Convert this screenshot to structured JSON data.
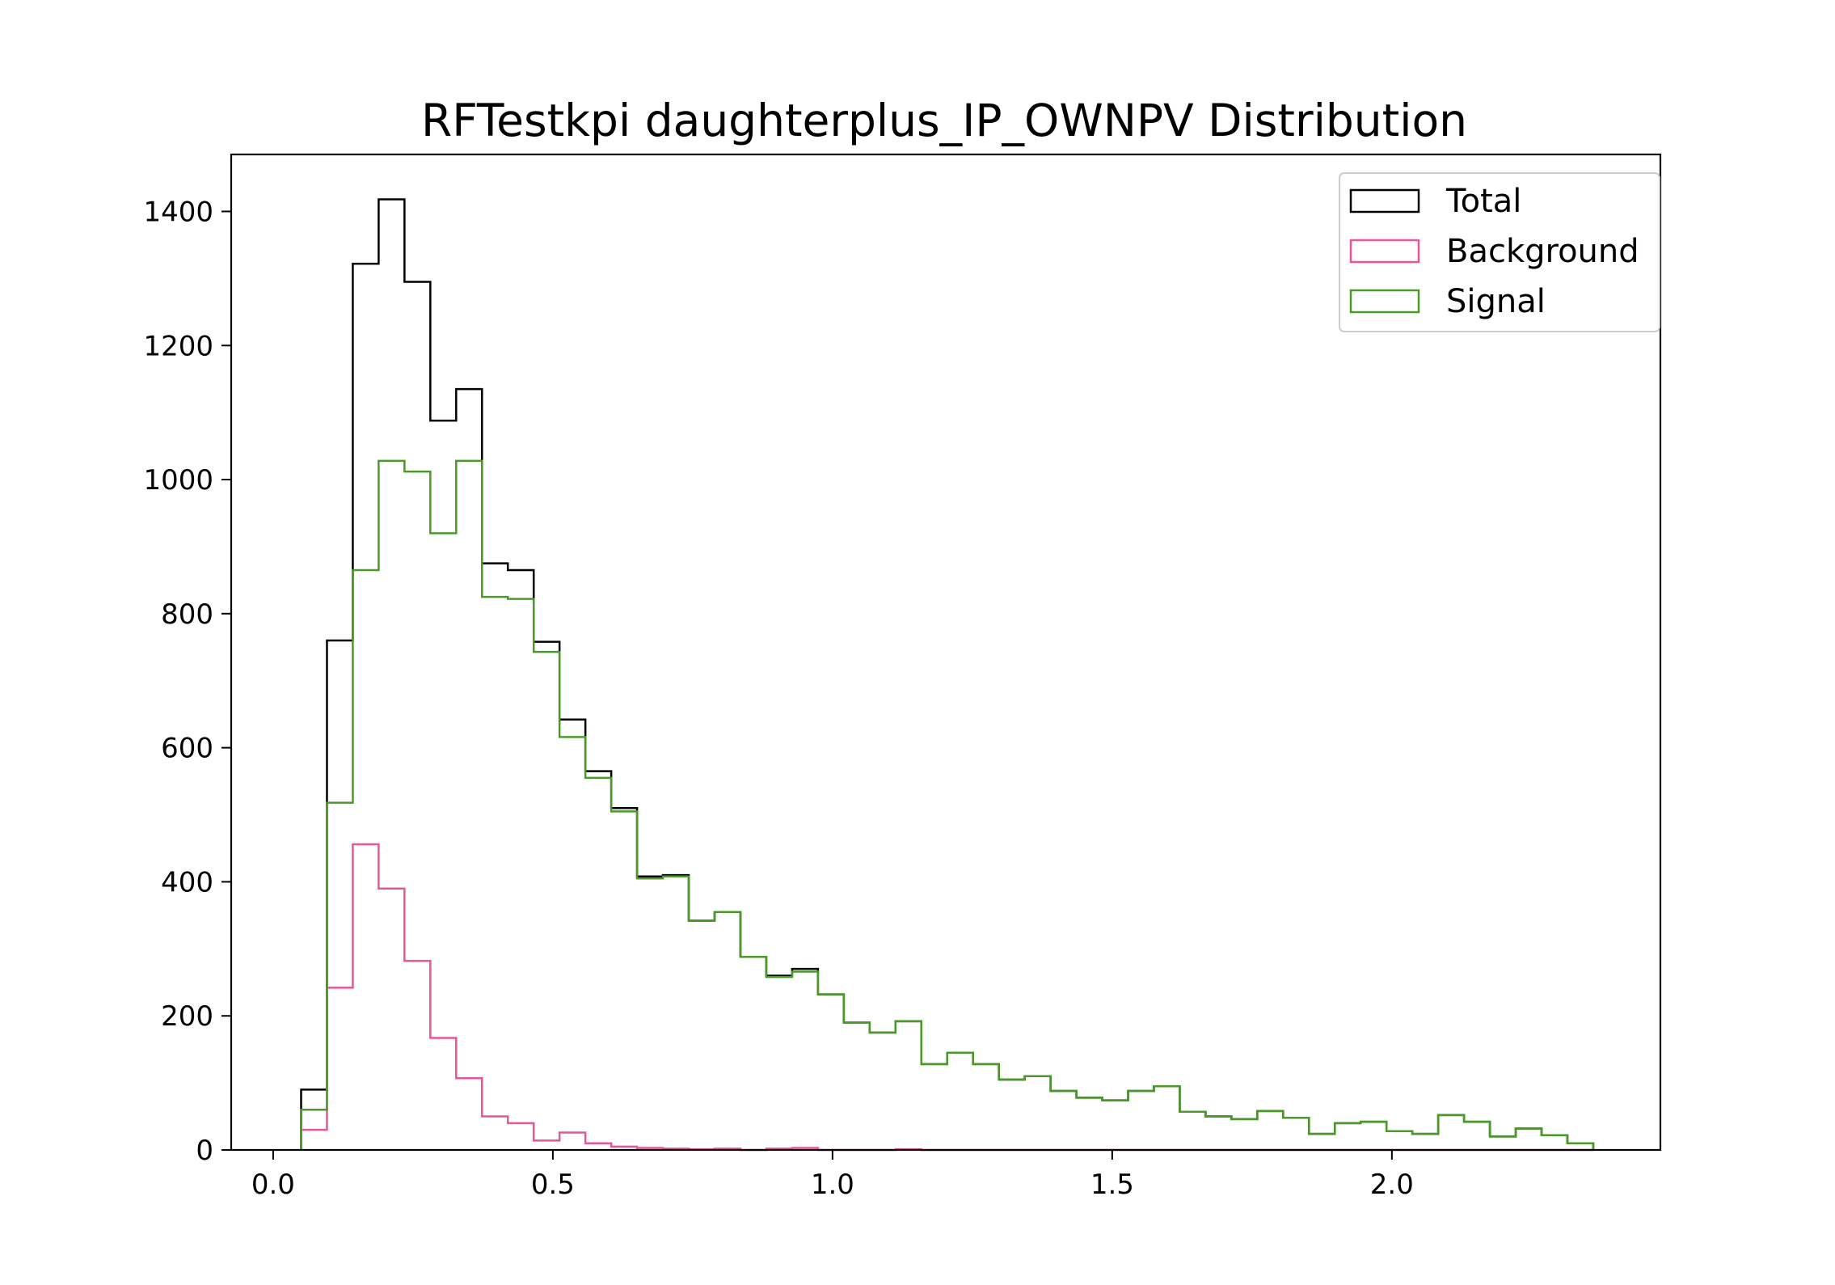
{
  "chart_data": {
    "type": "histogram",
    "title": "RFTestkpi daughterplus_IP_OWNPV Distribution",
    "xlabel": "",
    "ylabel": "",
    "xlim": [
      -0.075,
      2.48
    ],
    "ylim": [
      0,
      1485
    ],
    "xticks": [
      0.0,
      0.5,
      1.0,
      1.5,
      2.0
    ],
    "xtick_labels": [
      "0.0",
      "0.5",
      "1.0",
      "1.5",
      "2.0"
    ],
    "yticks": [
      0,
      200,
      400,
      600,
      800,
      1000,
      1200,
      1400
    ],
    "ytick_labels": [
      "0",
      "200",
      "400",
      "600",
      "800",
      "1000",
      "1200",
      "1400"
    ],
    "grid": false,
    "legend_position": "top-right",
    "bins": {
      "start": 0.05,
      "width": 0.0462,
      "count": 50
    },
    "series": [
      {
        "name": "Total",
        "color": "#000000",
        "values": [
          90,
          760,
          1322,
          1418,
          1295,
          1088,
          1135,
          875,
          865,
          758,
          642,
          565,
          510,
          408,
          410,
          342,
          355,
          288,
          260,
          270,
          232,
          190,
          175,
          192,
          128,
          145,
          128,
          105,
          110,
          88,
          78,
          74,
          88,
          95,
          57,
          50,
          46,
          58,
          48,
          24,
          40,
          42,
          28,
          24,
          52,
          42,
          20,
          32,
          22,
          10
        ]
      },
      {
        "name": "Background",
        "color": "#e8559a",
        "values": [
          30,
          242,
          456,
          390,
          282,
          167,
          107,
          50,
          40,
          14,
          26,
          10,
          5,
          3,
          2,
          1,
          2,
          0,
          2,
          3,
          0,
          0,
          0,
          1,
          0,
          0,
          0,
          0,
          0,
          0,
          0,
          0,
          0,
          0,
          0,
          0,
          0,
          0,
          0,
          0,
          0,
          0,
          0,
          0,
          0,
          0,
          0,
          0,
          0,
          0
        ]
      },
      {
        "name": "Signal",
        "color": "#4a9a2a",
        "values": [
          60,
          518,
          865,
          1028,
          1012,
          920,
          1028,
          825,
          822,
          743,
          616,
          555,
          505,
          405,
          408,
          342,
          355,
          288,
          258,
          266,
          232,
          190,
          175,
          192,
          128,
          145,
          128,
          105,
          110,
          88,
          78,
          74,
          88,
          95,
          57,
          50,
          46,
          58,
          48,
          24,
          40,
          42,
          28,
          24,
          52,
          42,
          20,
          32,
          22,
          10
        ]
      }
    ]
  }
}
